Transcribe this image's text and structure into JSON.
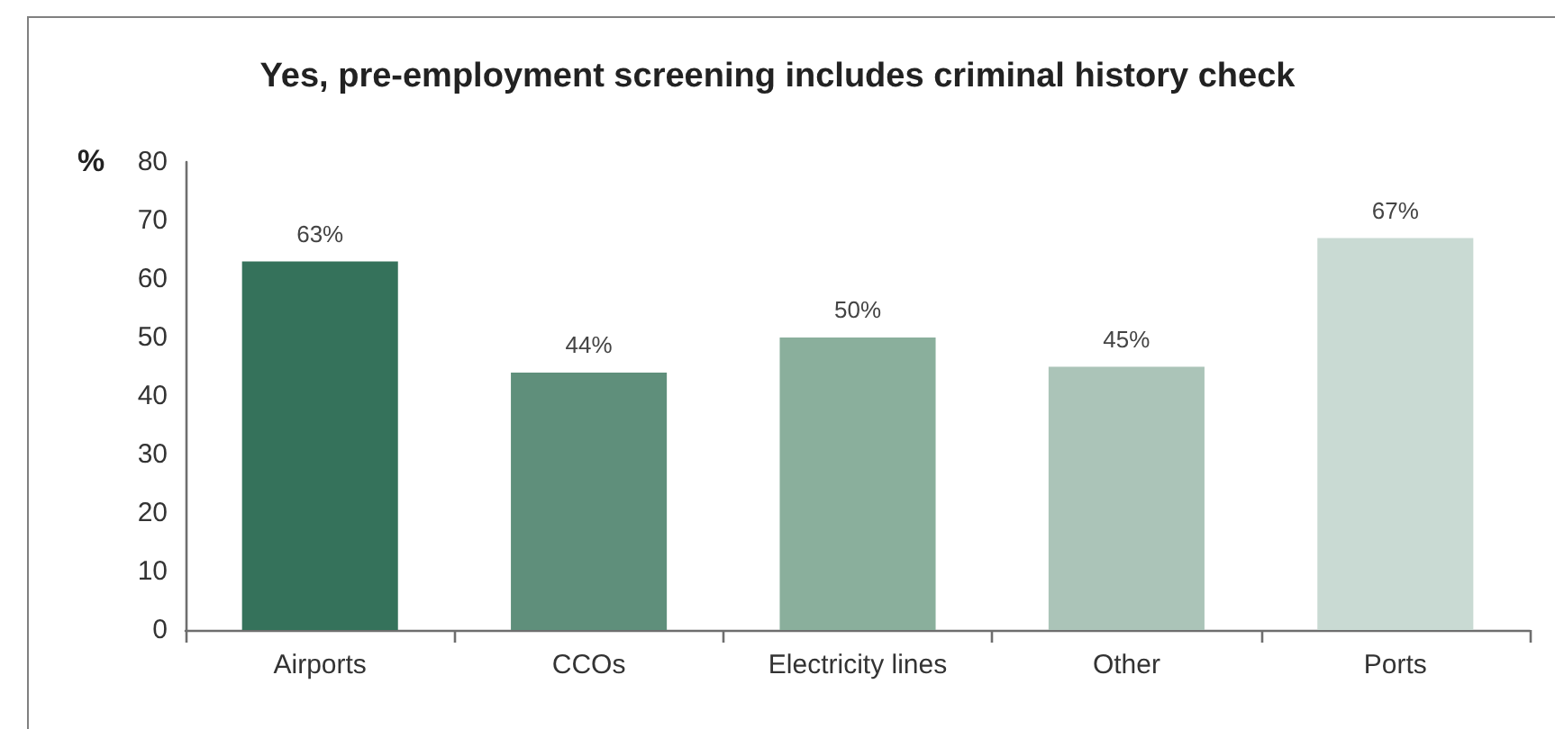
{
  "chart_data": {
    "type": "bar",
    "title": "Yes, pre-employment screening includes criminal history check",
    "ylabel": "%",
    "categories": [
      "Airports",
      "CCOs",
      "Electricity lines",
      "Other",
      "Ports"
    ],
    "values": [
      63,
      44,
      50,
      45,
      67
    ],
    "colors": [
      "#35725b",
      "#5f8f7b",
      "#8aaf9c",
      "#abc4b8",
      "#c9dad3"
    ],
    "value_labels": [
      "63%",
      "44%",
      "50%",
      "45%",
      "67%"
    ],
    "ylim": [
      0,
      80
    ],
    "yticks": [
      0,
      10,
      20,
      30,
      40,
      50,
      60,
      70,
      80
    ],
    "grid": false
  }
}
